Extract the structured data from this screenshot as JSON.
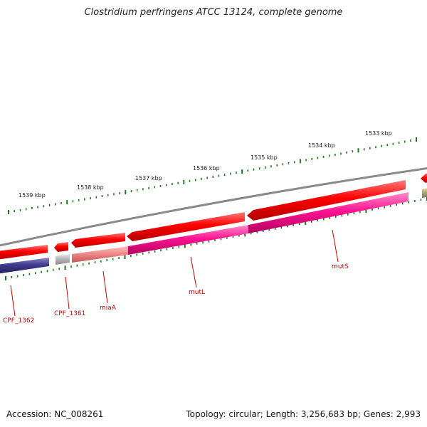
{
  "title": "Clostridium perfringens ATCC 13124, complete genome",
  "footer": {
    "accession": "Accession: NC_008261",
    "summary": "Topology: circular; Length: 3,256,683 bp; Genes: 2,993"
  },
  "colors": {
    "backbone": "#8a8a8a",
    "cds_forward": "#ff0000",
    "orf_magenta": "#ff1493",
    "gene_navy": "#3e3a8c",
    "gene_salmon": "#f08a8a",
    "gene_gray": "#b8b8b8",
    "gene_olive": "#b0aa70",
    "ticks": "#1a7a1a",
    "label": "#cc0000"
  },
  "scale": {
    "tick_labels": [
      "1533 kbp",
      "1534 kbp",
      "1535 kbp",
      "1536 kbp",
      "1537 kbp",
      "1538 kbp",
      "1539 kbp"
    ]
  },
  "gene_labels": [
    "CPF_1362",
    "CPF_1361",
    "miaA",
    "mutL",
    "mutS"
  ]
}
